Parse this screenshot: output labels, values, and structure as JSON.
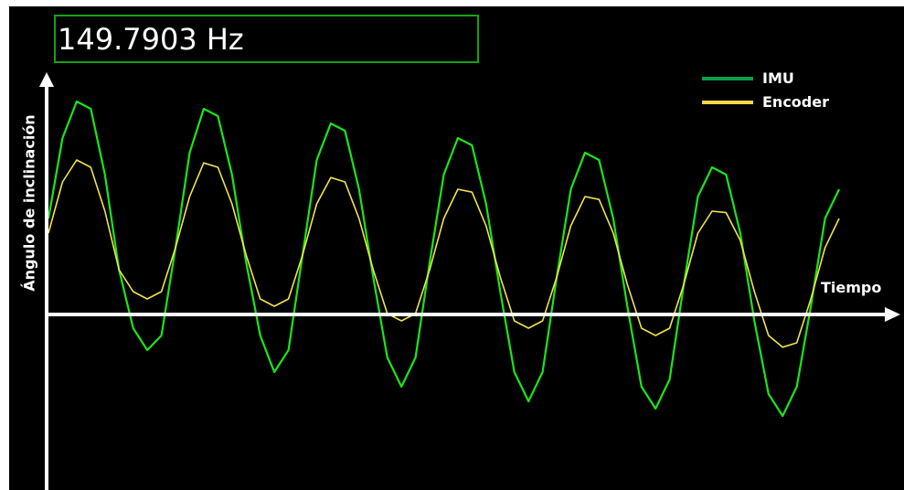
{
  "frequency_readout": "149.7903 Hz",
  "colors": {
    "imu": "#19e619",
    "encoder": "#f2e34a",
    "freq_box": "#11a411",
    "axes": "#ffffff",
    "background": "#000000"
  },
  "chart_data": {
    "type": "line",
    "xlabel": "Tiempo",
    "ylabel": "Ángulo de inclinación",
    "grid": false,
    "legend_position": "top-right",
    "xlim": [
      0,
      7
    ],
    "ylim": [
      -1.5,
      1.5
    ],
    "series": [
      {
        "name": "IMU",
        "x": [
          0.0,
          0.125,
          0.25,
          0.375,
          0.5,
          0.625,
          0.75,
          0.875,
          1.0,
          1.125,
          1.25,
          1.375,
          1.5,
          1.625,
          1.75,
          1.875,
          2.0,
          2.125,
          2.25,
          2.375,
          2.5,
          2.625,
          2.75,
          2.875,
          3.0,
          3.125,
          3.25,
          3.375,
          3.5,
          3.625,
          3.75,
          3.875,
          4.0,
          4.125,
          4.25,
          4.375,
          4.5,
          4.625,
          4.75,
          4.875,
          5.0,
          5.125,
          5.25,
          5.375,
          5.5,
          5.625,
          5.75,
          5.875,
          6.0,
          6.125,
          6.25,
          6.375,
          6.5,
          6.625,
          6.75,
          6.875,
          7.0
        ],
        "y": [
          0.3,
          0.85,
          1.1,
          1.05,
          0.6,
          -0.05,
          -0.45,
          -0.6,
          -0.5,
          0.1,
          0.75,
          1.05,
          1.0,
          0.6,
          0.0,
          -0.5,
          -0.75,
          -0.6,
          0.05,
          0.7,
          0.95,
          0.9,
          0.5,
          -0.1,
          -0.65,
          -0.85,
          -0.65,
          0.0,
          0.6,
          0.85,
          0.8,
          0.4,
          -0.2,
          -0.75,
          -0.95,
          -0.75,
          -0.1,
          0.5,
          0.75,
          0.7,
          0.3,
          -0.3,
          -0.85,
          -1.0,
          -0.8,
          -0.15,
          0.45,
          0.65,
          0.6,
          0.2,
          -0.4,
          -0.9,
          -1.05,
          -0.85,
          -0.3,
          0.3,
          0.5
        ]
      },
      {
        "name": "Encoder",
        "x": [
          0.0,
          0.125,
          0.25,
          0.375,
          0.5,
          0.625,
          0.75,
          0.875,
          1.0,
          1.125,
          1.25,
          1.375,
          1.5,
          1.625,
          1.75,
          1.875,
          2.0,
          2.125,
          2.25,
          2.375,
          2.5,
          2.625,
          2.75,
          2.875,
          3.0,
          3.125,
          3.25,
          3.375,
          3.5,
          3.625,
          3.75,
          3.875,
          4.0,
          4.125,
          4.25,
          4.375,
          4.5,
          4.625,
          4.75,
          4.875,
          5.0,
          5.125,
          5.25,
          5.375,
          5.5,
          5.625,
          5.75,
          5.875,
          6.0,
          6.125,
          6.25,
          6.375,
          6.5,
          6.625,
          6.75,
          6.875,
          7.0
        ],
        "y": [
          0.2,
          0.55,
          0.7,
          0.65,
          0.35,
          -0.05,
          -0.2,
          -0.25,
          -0.2,
          0.1,
          0.45,
          0.68,
          0.65,
          0.4,
          0.05,
          -0.25,
          -0.3,
          -0.25,
          0.05,
          0.4,
          0.58,
          0.55,
          0.3,
          -0.05,
          -0.35,
          -0.4,
          -0.35,
          -0.05,
          0.3,
          0.5,
          0.48,
          0.25,
          -0.1,
          -0.4,
          -0.45,
          -0.4,
          -0.1,
          0.25,
          0.45,
          0.43,
          0.2,
          -0.15,
          -0.45,
          -0.5,
          -0.45,
          -0.15,
          0.2,
          0.35,
          0.34,
          0.15,
          -0.2,
          -0.5,
          -0.58,
          -0.55,
          -0.25,
          0.1,
          0.3
        ]
      }
    ]
  }
}
